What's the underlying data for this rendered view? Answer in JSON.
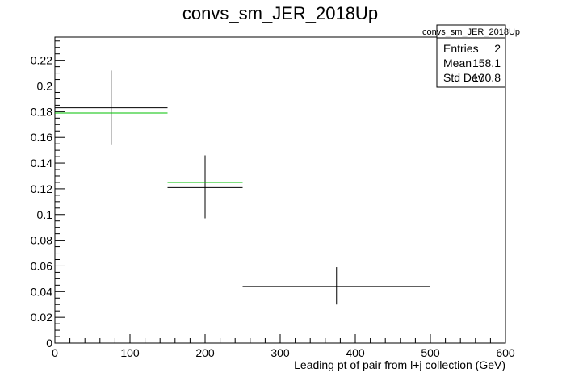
{
  "chart_data": {
    "type": "scatter",
    "title": "convs_sm_JER_2018Up",
    "xlabel": "Leading pt of pair from l+j collection (GeV)",
    "ylabel": "",
    "xlim": [
      0,
      600
    ],
    "ylim": [
      0,
      0.238
    ],
    "x_ticks": [
      0,
      100,
      200,
      300,
      400,
      500,
      600
    ],
    "x_tick_labels": [
      "0",
      "100",
      "200",
      "300",
      "400",
      "500",
      "600"
    ],
    "y_ticks": [
      0,
      0.02,
      0.04,
      0.06,
      0.08,
      0.1,
      0.12,
      0.14,
      0.16,
      0.18,
      0.2,
      0.22
    ],
    "y_tick_labels": [
      "0",
      "0.02",
      "0.04",
      "0.06",
      "0.08",
      "0.1",
      "0.12",
      "0.14",
      "0.16",
      "0.18",
      "0.2",
      "0.22"
    ],
    "grid": false,
    "series": [
      {
        "color": "#000000",
        "points": [
          {
            "x": 75,
            "y": 0.183,
            "x_low": 0,
            "x_high": 150,
            "y_low": 0.154,
            "y_high": 0.212
          },
          {
            "x": 200,
            "y": 0.121,
            "x_low": 150,
            "x_high": 250,
            "y_low": 0.097,
            "y_high": 0.146
          },
          {
            "x": 375,
            "y": 0.044,
            "x_low": 250,
            "x_high": 500,
            "y_low": 0.03,
            "y_high": 0.059
          }
        ]
      },
      {
        "color": "#00c000",
        "points": [
          {
            "x": 75,
            "y": 0.179,
            "x_low": 0,
            "x_high": 150
          },
          {
            "x": 200,
            "y": 0.125,
            "x_low": 150,
            "x_high": 250
          }
        ]
      }
    ],
    "stats_box": {
      "title": "convs_sm_JER_2018Up",
      "rows": [
        {
          "label": "Entries",
          "value": "2"
        },
        {
          "label": "Mean",
          "value": "158.1"
        },
        {
          "label": "Std Dev",
          "value": "100.8"
        }
      ]
    }
  }
}
